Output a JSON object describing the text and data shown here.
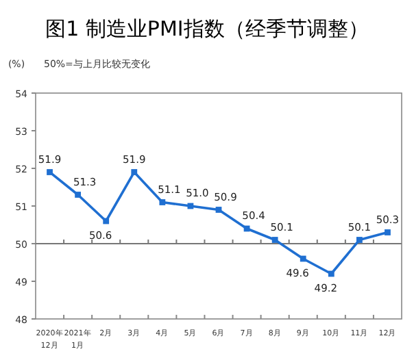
{
  "chart_data": {
    "type": "line",
    "title": "图1 制造业PMI指数（经季节调整）",
    "ylabel": "(%)",
    "annotations": [
      "50%=与上月比较无变化"
    ],
    "categories": [
      "2020年 12月",
      "2021年 1月",
      "2月",
      "3月",
      "4月",
      "5月",
      "6月",
      "7月",
      "8月",
      "9月",
      "10月",
      "11月",
      "12月"
    ],
    "series": [
      {
        "color": "#1f6fd1",
        "values": [
          51.9,
          51.3,
          50.6,
          51.9,
          51.1,
          51.0,
          50.9,
          50.4,
          50.1,
          49.6,
          49.2,
          50.1,
          50.3
        ]
      }
    ],
    "ylim": [
      48,
      54
    ],
    "yticks": [
      48,
      49,
      50,
      51,
      52,
      53,
      54
    ],
    "ref_lines": [
      {
        "axis": "y",
        "value": 50
      }
    ],
    "value_labels": [
      "51.9",
      "51.3",
      "50.6",
      "51.9",
      "51.1",
      "51.0",
      "50.9",
      "50.4",
      "50.1",
      "49.6",
      "49.2",
      "50.1",
      "50.3"
    ],
    "marker": "square"
  }
}
